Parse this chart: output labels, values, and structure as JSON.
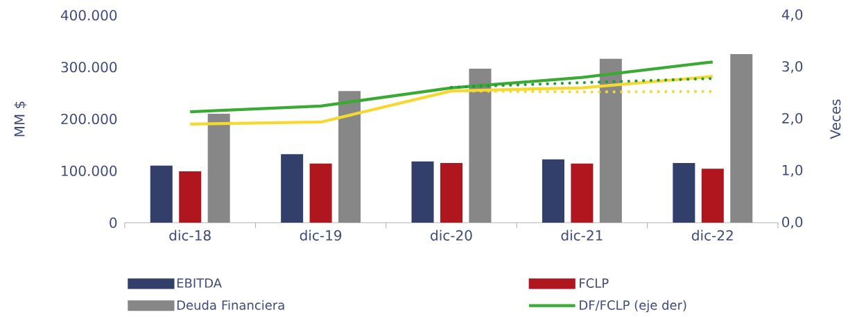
{
  "chart_data": {
    "type": "bar",
    "categories": [
      "dic-18",
      "dic-19",
      "dic-20",
      "dic-21",
      "dic-22"
    ],
    "ylabel": "MM $",
    "y2label": "Veces",
    "ylim": [
      0,
      400000
    ],
    "yticks": [
      0,
      {
        "value": 100000,
        "label": "100.000"
      },
      {
        "value": 200000,
        "label": "200.000"
      },
      {
        "value": 300000,
        "label": "300.000"
      },
      {
        "value": 400000,
        "label": "400.000"
      }
    ],
    "y2lim": [
      0,
      4
    ],
    "y2ticks": [
      {
        "value": 0,
        "label": "0,0"
      },
      {
        "value": 1,
        "label": "1,0"
      },
      {
        "value": 2,
        "label": "2,0"
      },
      {
        "value": 3,
        "label": "3,0"
      },
      {
        "value": 4,
        "label": "4,0"
      }
    ],
    "legend": "bottom",
    "grid": false,
    "series": [
      {
        "name": "EBITDA",
        "color": "#333f6b",
        "values": [
          110000,
          132000,
          118000,
          122000,
          115000
        ]
      },
      {
        "name": "FCLP",
        "color": "#b0161d",
        "values": [
          99000,
          114000,
          115000,
          114000,
          104000
        ]
      },
      {
        "name": "Deuda Financiera",
        "color": "#878787",
        "values": [
          210000,
          254000,
          297000,
          316000,
          325000
        ]
      },
      {
        "name": "DF/FCLP (eje der)",
        "type": "line",
        "axis": "y2",
        "line_style": "solid",
        "color": "#3aaa35",
        "values": [
          2.14,
          2.25,
          2.6,
          2.8,
          3.1
        ]
      },
      {
        "type": "line",
        "axis": "y2",
        "line_style": "solid",
        "color": "#f5d832",
        "values": [
          1.9,
          1.94,
          2.54,
          2.6,
          2.82
        ]
      },
      {
        "type": "line",
        "axis": "y2",
        "line_style": "dotted",
        "color": "#1f9a3a",
        "values": [
          null,
          null,
          2.61,
          2.7,
          2.78
        ]
      },
      {
        "type": "line",
        "axis": "y2",
        "line_style": "dotted",
        "color": "#f5d832",
        "values": [
          null,
          null,
          2.54,
          2.52,
          2.53
        ]
      }
    ]
  }
}
